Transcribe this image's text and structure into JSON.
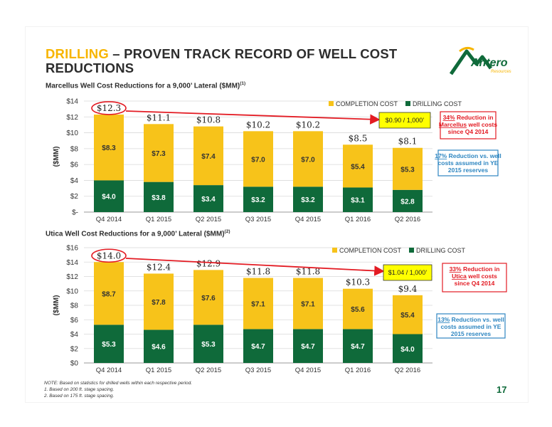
{
  "slide": {
    "title_highlight": "DRILLING",
    "title_rest": " – PROVEN TRACK RECORD OF WELL COST REDUCTIONS",
    "logo_text": "Antero",
    "logo_sub": "Resources",
    "page_number": "17",
    "notes": [
      "NOTE: Based on statistics for drilled wells within each respective period.",
      "1.  Based on 200 ft. stage spacing.",
      "2.  Based on 175 ft. stage spacing."
    ]
  },
  "colors": {
    "completion": "#f7c31a",
    "drilling": "#0f6a3a",
    "arrow": "#e31b23",
    "callout_red": "#e31b23",
    "callout_blue": "#2e86c1",
    "highlight_box": "#ffff00"
  },
  "chart_data": [
    {
      "type": "bar",
      "stacked": true,
      "title": "Marcellus Well Cost Reductions for a 9,000’ Lateral ($MM)",
      "title_sup": "(1)",
      "ylabel": "($MM)",
      "ylim": [
        0,
        14
      ],
      "yticks": [
        "$-",
        "$2",
        "$4",
        "$6",
        "$8",
        "$10",
        "$12",
        "$14"
      ],
      "categories": [
        "Q4 2014",
        "Q1 2015",
        "Q2 2015",
        "Q3 2015",
        "Q4 2015",
        "Q1 2016",
        "Q2 2016"
      ],
      "series": [
        {
          "name": "DRILLING COST",
          "values": [
            4.0,
            3.8,
            3.4,
            3.2,
            3.2,
            3.1,
            2.8
          ],
          "labels": [
            "$4.0",
            "$3.8",
            "$3.4",
            "$3.2",
            "$3.2",
            "$3.1",
            "$2.8"
          ]
        },
        {
          "name": "COMPLETION COST",
          "values": [
            8.3,
            7.3,
            7.4,
            7.0,
            7.0,
            5.4,
            5.3
          ],
          "labels": [
            "$8.3",
            "$7.3",
            "$7.4",
            "$7.0",
            "$7.0",
            "$5.4",
            "$5.3"
          ]
        }
      ],
      "totals": [
        "$12.3",
        "$11.1",
        "$10.8",
        "$10.2",
        "$10.2",
        "$8.5",
        "$8.1"
      ],
      "arrow_label": "$0.90 / 1,000’",
      "callout_red": {
        "pct": "34%",
        "text1": " Reduction in",
        "name": "Marcellus",
        "text2": " well costs since Q4 2014"
      },
      "callout_blue": {
        "pct": "17%",
        "text": " Reduction vs. well costs assumed in YE 2015 reserves"
      }
    },
    {
      "type": "bar",
      "stacked": true,
      "title": "Utica Well Cost Reductions for a 9,000’ Lateral ($MM)",
      "title_sup": "(2)",
      "ylabel": "($MM)",
      "ylim": [
        0,
        16
      ],
      "yticks": [
        "$0",
        "$2",
        "$4",
        "$6",
        "$8",
        "$10",
        "$12",
        "$14",
        "$16"
      ],
      "categories": [
        "Q4 2014",
        "Q1 2015",
        "Q2 2015",
        "Q3 2015",
        "Q4 2015",
        "Q1 2016",
        "Q2 2016"
      ],
      "series": [
        {
          "name": "DRILLING COST",
          "values": [
            5.3,
            4.6,
            5.3,
            4.7,
            4.7,
            4.7,
            4.0
          ],
          "labels": [
            "$5.3",
            "$4.6",
            "$5.3",
            "$4.7",
            "$4.7",
            "$4.7",
            "$4.0"
          ]
        },
        {
          "name": "COMPLETION COST",
          "values": [
            8.7,
            7.8,
            7.6,
            7.1,
            7.1,
            5.6,
            5.4
          ],
          "labels": [
            "$8.7",
            "$7.8",
            "$7.6",
            "$7.1",
            "$7.1",
            "$5.6",
            "$5.4"
          ]
        }
      ],
      "totals": [
        "$14.0",
        "$12.4",
        "$12.9",
        "$11.8",
        "$11.8",
        "$10.3",
        "$9.4"
      ],
      "arrow_label": "$1.04 / 1,000’",
      "callout_red": {
        "pct": "33%",
        "text1": " Reduction in ",
        "name": "Utica",
        "text2": " well costs since Q4 2014"
      },
      "callout_blue": {
        "pct": "13%",
        "text": " Reduction vs. well costs assumed in YE 2015 reserves"
      }
    }
  ]
}
